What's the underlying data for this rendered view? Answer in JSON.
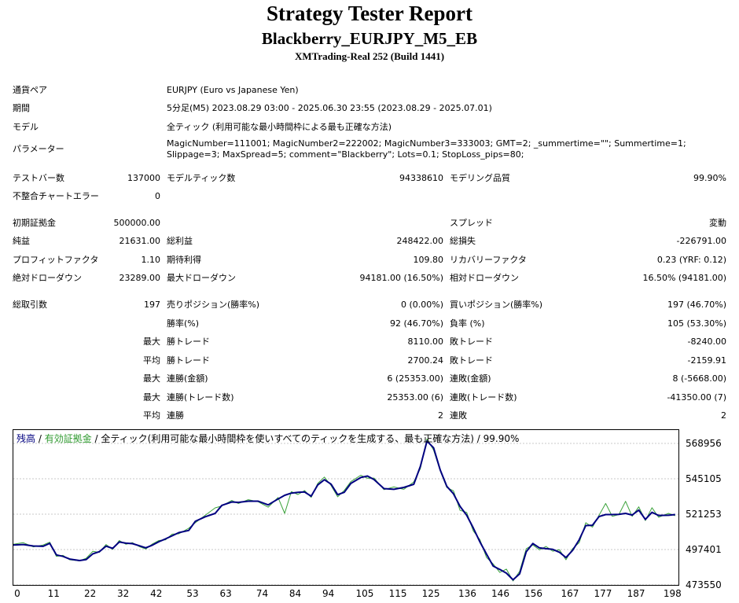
{
  "header": {
    "title": "Strategy Tester Report",
    "subtitle": "Blackberry_EURJPY_M5_EB",
    "server": "XMTrading-Real 252 (Build 1441)"
  },
  "info": {
    "symbol_label": "通貨ペア",
    "symbol_value": "EURJPY (Euro vs Japanese Yen)",
    "period_label": "期間",
    "period_value": "5分足(M5) 2023.08.29 03:00 - 2025.06.30 23:55 (2023.08.29 - 2025.07.01)",
    "model_label": "モデル",
    "model_value": "全ティック (利用可能な最小時間枠による最も正確な方法)",
    "params_label": "パラメーター",
    "params_value": "MagicNumber=111001; MagicNumber2=222002; MagicNumber3=333003; GMT=2; _summertime=\"\"; Summertime=1; Slippage=3; MaxSpread=5; comment=\"Blackberry\"; Lots=0.1; StopLoss_pips=80;"
  },
  "stats": {
    "bars_label": "テストバー数",
    "bars": "137000",
    "ticks_label": "モデルティック数",
    "ticks": "94338610",
    "quality_label": "モデリング品質",
    "quality": "99.90%",
    "mismatch_label": "不整合チャートエラー",
    "mismatch": "0",
    "deposit_label": "初期証拠金",
    "deposit": "500000.00",
    "spread_label": "スプレッド",
    "spread": "変動",
    "net_label": "純益",
    "net": "21631.00",
    "gross_profit_label": "総利益",
    "gross_profit": "248422.00",
    "gross_loss_label": "総損失",
    "gross_loss": "-226791.00",
    "pf_label": "プロフィットファクタ",
    "pf": "1.10",
    "expected_label": "期待利得",
    "expected": "109.80",
    "recovery_label": "リカバリーファクタ",
    "recovery": "0.23 (YRF: 0.12)",
    "abs_dd_label": "絶対ドローダウン",
    "abs_dd": "23289.00",
    "max_dd_label": "最大ドローダウン",
    "max_dd": "94181.00 (16.50%)",
    "rel_dd_label": "相対ドローダウン",
    "rel_dd": "16.50% (94181.00)",
    "trades_label": "総取引数",
    "trades": "197",
    "short_label": "売りポジション(勝率%)",
    "short": "0 (0.00%)",
    "long_label": "買いポジション(勝率%)",
    "long": "197 (46.70%)",
    "winrate_label": "勝率(%)",
    "winrate": "92 (46.70%)",
    "lossrate_label": "負率 (%)",
    "lossrate": "105 (53.30%)",
    "max_word": "最大",
    "avg_word": "平均",
    "largest_win_label": "勝トレード",
    "largest_win": "8110.00",
    "largest_loss_label": "敗トレード",
    "largest_loss": "-8240.00",
    "avg_win_label": "勝トレード",
    "avg_win": "2700.24",
    "avg_loss_label": "敗トレード",
    "avg_loss": "-2159.91",
    "max_cons_win_label": "連勝(金額)",
    "max_cons_win": "6 (25353.00)",
    "max_cons_loss_label": "連敗(金額)",
    "max_cons_loss": "8 (-5668.00)",
    "max_cons_profit_label": "連勝(トレード数)",
    "max_cons_profit": "25353.00 (6)",
    "max_cons_lossamt_label": "連敗(トレード数)",
    "max_cons_lossamt": "-41350.00 (7)",
    "avg_cons_win_label": "連勝",
    "avg_cons_win": "2",
    "avg_cons_loss_label": "連敗",
    "avg_cons_loss": "2"
  },
  "chart_legend": {
    "balance": "残高",
    "sep1": " / ",
    "equity": "有効証拠金",
    "sep2": " / ",
    "rest": "全ティック(利用可能な最小時間枠を使いすべてのティックを生成する、最も正確な方法) / 99.90%"
  },
  "colors": {
    "balance": "#000080",
    "equity": "#3aa23a",
    "grid": "#c8c8c8",
    "legend_balance": "#000080",
    "legend_equity": "#2e9a2e"
  },
  "chart_data": {
    "type": "line",
    "yticks": [
      "568956",
      "545105",
      "521253",
      "497401",
      "473550"
    ],
    "xticks": [
      "0",
      "11",
      "22",
      "32",
      "42",
      "53",
      "63",
      "74",
      "84",
      "94",
      "105",
      "115",
      "125",
      "136",
      "146",
      "156",
      "167",
      "177",
      "187",
      "198"
    ],
    "ylim": [
      473550,
      578000
    ],
    "xlim": [
      0,
      201
    ],
    "series": [
      {
        "name": "残高",
        "x": [
          0,
          3,
          6,
          9,
          11,
          13,
          15,
          17,
          20,
          22,
          24,
          26,
          28,
          30,
          32,
          34,
          36,
          38,
          40,
          42,
          44,
          46,
          48,
          50,
          53,
          55,
          58,
          61,
          63,
          66,
          68,
          71,
          74,
          77,
          80,
          82,
          84,
          86,
          88,
          90,
          92,
          94,
          96,
          98,
          100,
          102,
          105,
          107,
          109,
          112,
          115,
          118,
          121,
          123,
          125,
          127,
          129,
          131,
          133,
          135,
          137,
          139,
          141,
          143,
          145,
          147,
          149,
          151,
          153,
          155,
          157,
          159,
          161,
          163,
          165,
          167,
          169,
          171,
          173,
          175,
          177,
          179,
          181,
          183,
          185,
          187,
          189,
          191,
          193,
          195,
          198,
          200
        ],
        "y": [
          500500,
          500800,
          499800,
          499600,
          501600,
          493800,
          492800,
          491000,
          490000,
          490600,
          494500,
          496000,
          499700,
          498200,
          502500,
          501700,
          501400,
          500000,
          498600,
          500400,
          502700,
          504600,
          506700,
          508800,
          510300,
          516500,
          519500,
          521800,
          527200,
          529500,
          529200,
          530000,
          530000,
          527500,
          531500,
          534000,
          535500,
          536000,
          536200,
          533400,
          541000,
          544500,
          541500,
          534400,
          536000,
          542000,
          546000,
          547000,
          544600,
          538500,
          538000,
          539300,
          541400,
          553500,
          570500,
          566000,
          551000,
          540000,
          535000,
          526500,
          520500,
          512000,
          502500,
          494300,
          486300,
          484000,
          481500,
          477000,
          481000,
          496000,
          501500,
          498500,
          498000,
          497500,
          495600,
          492000,
          496800,
          504000,
          513600,
          513800,
          519700,
          521000,
          521000,
          521100,
          521800,
          520700,
          524000,
          517700,
          522500,
          520400,
          520500,
          521000
        ]
      },
      {
        "name": "有効証拠金",
        "x": [
          0,
          3,
          6,
          9,
          11,
          13,
          15,
          17,
          20,
          22,
          24,
          26,
          28,
          30,
          32,
          34,
          36,
          38,
          40,
          42,
          44,
          46,
          48,
          50,
          53,
          55,
          58,
          61,
          63,
          66,
          68,
          71,
          74,
          77,
          80,
          82,
          84,
          86,
          88,
          90,
          92,
          94,
          96,
          98,
          100,
          102,
          105,
          107,
          109,
          112,
          115,
          118,
          121,
          123,
          125,
          127,
          129,
          131,
          133,
          135,
          137,
          139,
          141,
          143,
          145,
          147,
          149,
          151,
          153,
          155,
          157,
          159,
          161,
          163,
          165,
          167,
          169,
          171,
          173,
          175,
          177,
          179,
          181,
          183,
          185,
          187,
          189,
          191,
          193,
          195,
          198,
          200
        ],
        "y": [
          501000,
          502000,
          499200,
          500500,
          502400,
          492800,
          493500,
          490500,
          489800,
          491500,
          496200,
          495500,
          500800,
          497500,
          503500,
          501000,
          502000,
          499500,
          497800,
          501200,
          503500,
          504000,
          507800,
          508000,
          511800,
          515500,
          520500,
          525500,
          526800,
          530500,
          528500,
          531000,
          529600,
          526000,
          532500,
          521800,
          536500,
          534500,
          537200,
          532600,
          542000,
          546300,
          540600,
          533000,
          537300,
          543200,
          547500,
          545500,
          545600,
          537800,
          539600,
          538000,
          543000,
          552000,
          572000,
          564500,
          550500,
          539200,
          537000,
          523800,
          522500,
          510000,
          504000,
          492000,
          487700,
          482000,
          484200,
          476200,
          482800,
          498000,
          500500,
          497200,
          499500,
          496300,
          497300,
          490500,
          498000,
          502000,
          515500,
          512500,
          520500,
          528500,
          519800,
          521000,
          529900,
          519800,
          526200,
          516900,
          525600,
          519200,
          521800,
          520200
        ]
      }
    ]
  }
}
